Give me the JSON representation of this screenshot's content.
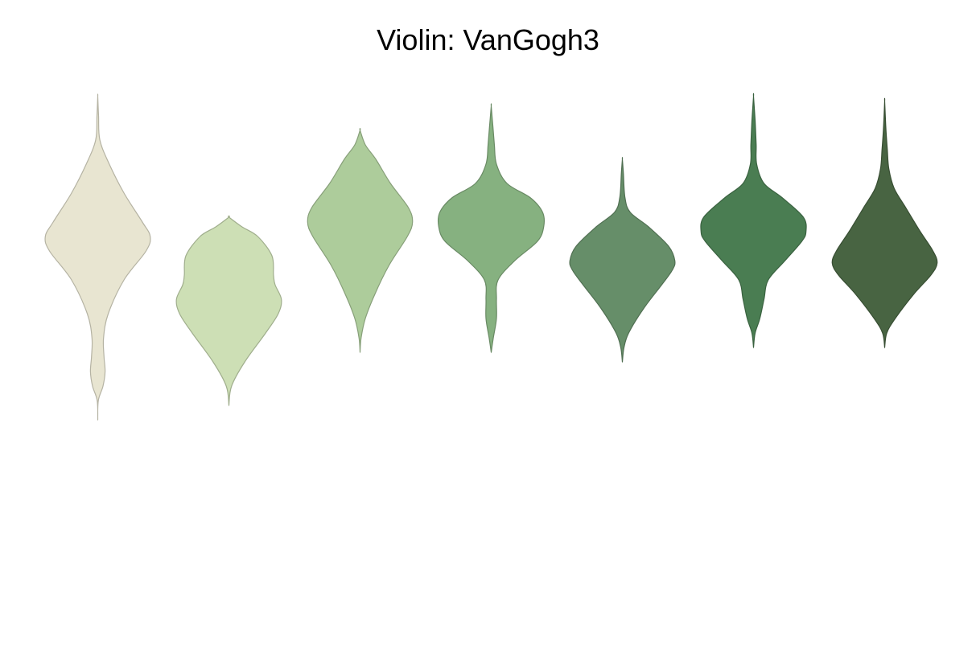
{
  "chart_data": {
    "type": "violin",
    "title": "Violin: VanGogh3",
    "xlabel": "",
    "ylabel": "",
    "axes_visible": false,
    "grid": false,
    "legend": "none",
    "palette": "VanGogh3",
    "ylim": [
      0,
      1
    ],
    "series": [
      {
        "color": "#e8e5d1",
        "min": 0.33,
        "max": 1.0,
        "profile": [
          [
            0.33,
            0.0
          ],
          [
            0.37,
            0.01
          ],
          [
            0.4,
            0.1
          ],
          [
            0.43,
            0.14
          ],
          [
            0.46,
            0.12
          ],
          [
            0.5,
            0.11
          ],
          [
            0.55,
            0.2
          ],
          [
            0.62,
            0.5
          ],
          [
            0.68,
            0.92
          ],
          [
            0.71,
            1.0
          ],
          [
            0.74,
            0.85
          ],
          [
            0.8,
            0.5
          ],
          [
            0.86,
            0.22
          ],
          [
            0.91,
            0.04
          ],
          [
            0.96,
            0.015
          ],
          [
            1.0,
            0.0
          ]
        ]
      },
      {
        "color": "#cddfb5",
        "min": 0.36,
        "max": 0.75,
        "profile": [
          [
            0.36,
            0.0
          ],
          [
            0.4,
            0.05
          ],
          [
            0.45,
            0.3
          ],
          [
            0.51,
            0.7
          ],
          [
            0.55,
            0.94
          ],
          [
            0.58,
            1.0
          ],
          [
            0.61,
            0.88
          ],
          [
            0.63,
            0.85
          ],
          [
            0.67,
            0.82
          ],
          [
            0.71,
            0.55
          ],
          [
            0.73,
            0.25
          ],
          [
            0.75,
            0.0
          ]
        ]
      },
      {
        "color": "#adcc9b",
        "min": 0.47,
        "max": 0.93,
        "profile": [
          [
            0.47,
            0.0
          ],
          [
            0.5,
            0.02
          ],
          [
            0.54,
            0.1
          ],
          [
            0.59,
            0.28
          ],
          [
            0.65,
            0.55
          ],
          [
            0.71,
            0.9
          ],
          [
            0.74,
            1.0
          ],
          [
            0.77,
            0.92
          ],
          [
            0.82,
            0.58
          ],
          [
            0.87,
            0.3
          ],
          [
            0.9,
            0.1
          ],
          [
            0.93,
            0.0
          ]
        ]
      },
      {
        "color": "#86b180",
        "min": 0.47,
        "max": 0.98,
        "profile": [
          [
            0.47,
            0.0
          ],
          [
            0.5,
            0.04
          ],
          [
            0.54,
            0.1
          ],
          [
            0.58,
            0.1
          ],
          [
            0.62,
            0.13
          ],
          [
            0.66,
            0.45
          ],
          [
            0.7,
            0.88
          ],
          [
            0.73,
            1.0
          ],
          [
            0.76,
            0.98
          ],
          [
            0.79,
            0.75
          ],
          [
            0.82,
            0.3
          ],
          [
            0.86,
            0.1
          ],
          [
            0.9,
            0.06
          ],
          [
            0.94,
            0.03
          ],
          [
            0.98,
            0.0
          ]
        ]
      },
      {
        "color": "#668e69",
        "min": 0.45,
        "max": 0.87,
        "profile": [
          [
            0.45,
            0.0
          ],
          [
            0.48,
            0.03
          ],
          [
            0.51,
            0.12
          ],
          [
            0.56,
            0.4
          ],
          [
            0.61,
            0.75
          ],
          [
            0.64,
            0.95
          ],
          [
            0.66,
            1.0
          ],
          [
            0.69,
            0.88
          ],
          [
            0.73,
            0.5
          ],
          [
            0.76,
            0.15
          ],
          [
            0.79,
            0.05
          ],
          [
            0.84,
            0.02
          ],
          [
            0.87,
            0.0
          ]
        ]
      },
      {
        "color": "#4a7d52",
        "min": 0.48,
        "max": 1.0,
        "profile": [
          [
            0.48,
            0.0
          ],
          [
            0.51,
            0.03
          ],
          [
            0.54,
            0.12
          ],
          [
            0.58,
            0.2
          ],
          [
            0.62,
            0.28
          ],
          [
            0.66,
            0.6
          ],
          [
            0.7,
            0.92
          ],
          [
            0.72,
            1.0
          ],
          [
            0.75,
            0.95
          ],
          [
            0.79,
            0.55
          ],
          [
            0.82,
            0.2
          ],
          [
            0.86,
            0.06
          ],
          [
            0.9,
            0.05
          ],
          [
            0.95,
            0.03
          ],
          [
            1.0,
            0.0
          ]
        ]
      },
      {
        "color": "#486442",
        "min": 0.48,
        "max": 0.99,
        "profile": [
          [
            0.48,
            0.0
          ],
          [
            0.51,
            0.04
          ],
          [
            0.54,
            0.2
          ],
          [
            0.59,
            0.55
          ],
          [
            0.63,
            0.88
          ],
          [
            0.655,
            1.0
          ],
          [
            0.68,
            0.92
          ],
          [
            0.72,
            0.68
          ],
          [
            0.77,
            0.4
          ],
          [
            0.81,
            0.18
          ],
          [
            0.85,
            0.08
          ],
          [
            0.89,
            0.05
          ],
          [
            0.94,
            0.02
          ],
          [
            0.99,
            0.0
          ]
        ]
      }
    ]
  }
}
